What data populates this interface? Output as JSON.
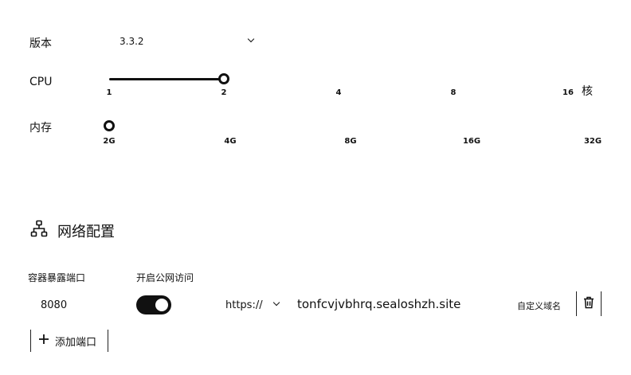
{
  "version": {
    "label": "版本",
    "value": "3.3.2",
    "icon": "chevron-down-icon"
  },
  "cpu": {
    "label": "CPU",
    "unit": "核",
    "ticks": [
      "1",
      "2",
      "4",
      "8",
      "16"
    ],
    "selected": "2",
    "fraction": 0.25
  },
  "memory": {
    "label": "内存",
    "ticks": [
      "2G",
      "4G",
      "8G",
      "16G",
      "32G"
    ],
    "selected": "2G",
    "fraction": 0
  },
  "network": {
    "title": "网络配置",
    "icon": "network-icon",
    "port_header": "容器暴露端口",
    "public_header": "开启公网访问",
    "port_value": "8080",
    "public_enabled": true,
    "protocol": "https://",
    "domain": "tonfcvjvbhrq.sealoshzh.site",
    "custom_domain_label": "自定义域名",
    "delete_icon": "trash-icon",
    "add_port_label": "添加端口",
    "add_icon": "plus-icon"
  }
}
